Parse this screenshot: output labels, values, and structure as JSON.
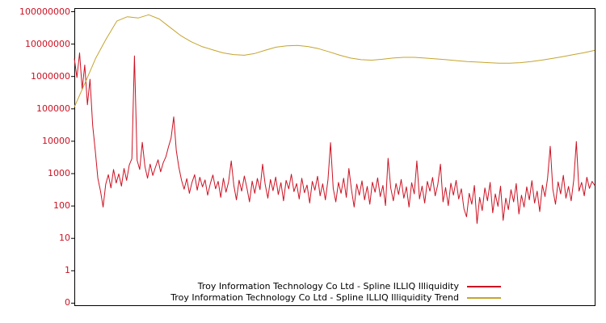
{
  "chart": {
    "background_color": "#ffffff",
    "plot_border_color": "#000000",
    "axis_label_color": "#cc1122"
  },
  "chart_data": {
    "type": "line",
    "title": "",
    "xlabel": "",
    "ylabel": "",
    "x_axis": {
      "tick_labels_visible": false
    },
    "y_axis": {
      "scale": "log",
      "label_color": "#cc1122",
      "tick_labels": [
        "100000000",
        "10000000",
        "1000000",
        "100000",
        "10000",
        "1000",
        "100",
        "10",
        "1",
        "0"
      ],
      "range": [
        1,
        100000000
      ]
    },
    "legend_position": "bottom-center-inside",
    "series": [
      {
        "name": "Troy Information Technology Co Ltd - Spline ILLIQ Illiquidity",
        "color": "#cc1122",
        "values": [
          3500000,
          900000,
          5200000,
          400000,
          2200000,
          130000,
          800000,
          30000,
          5000,
          700,
          280,
          90,
          450,
          900,
          350,
          1300,
          500,
          950,
          400,
          1400,
          600,
          1800,
          2800,
          4200000,
          2500,
          1300,
          9000,
          1600,
          700,
          1900,
          850,
          1500,
          2600,
          1100,
          2100,
          3200,
          6500,
          12000,
          55000,
          5000,
          1500,
          600,
          320,
          680,
          240,
          520,
          900,
          300,
          750,
          380,
          620,
          210,
          480,
          880,
          330,
          560,
          180,
          700,
          260,
          540,
          2400,
          420,
          150,
          610,
          280,
          820,
          350,
          130,
          570,
          240,
          690,
          310,
          1900,
          450,
          170,
          640,
          290,
          760,
          220,
          510,
          140,
          600,
          330,
          930,
          270,
          480,
          160,
          700,
          250,
          430,
          120,
          560,
          300,
          810,
          200,
          470,
          150,
          620,
          8800,
          340,
          130,
          520,
          240,
          700,
          180,
          1400,
          310,
          90,
          460,
          210,
          580,
          150,
          390,
          110,
          530,
          260,
          720,
          190,
          420,
          100,
          2900,
          350,
          140,
          480,
          220,
          640,
          170,
          380,
          90,
          510,
          230,
          2400,
          160,
          400,
          120,
          560,
          280,
          740,
          200,
          440,
          1900,
          130,
          360,
          100,
          490,
          210,
          600,
          160,
          330,
          80,
          45,
          240,
          110,
          420,
          28,
          180,
          70,
          350,
          140,
          520,
          60,
          230,
          95,
          400,
          35,
          170,
          75,
          310,
          130,
          480,
          55,
          210,
          90,
          380,
          150,
          590,
          120,
          280,
          65,
          430,
          190,
          700,
          6800,
          320,
          110,
          540,
          230,
          860,
          170,
          390,
          140,
          620,
          9500,
          280,
          520,
          200,
          750,
          340,
          560,
          420
        ]
      },
      {
        "name": "Troy Information Technology Co Ltd - Spline ILLIQ Illiquidity Trend",
        "color": "#c5a42e",
        "values": [
          110000,
          600000,
          3500000,
          14000000,
          50000000,
          68000000,
          62000000,
          78000000,
          58000000,
          32000000,
          18000000,
          11500000,
          8200000,
          6500000,
          5200000,
          4600000,
          4400000,
          5000000,
          6300000,
          7800000,
          8600000,
          8800000,
          8200000,
          7000000,
          5600000,
          4400000,
          3600000,
          3200000,
          3100000,
          3300000,
          3600000,
          3800000,
          3800000,
          3600000,
          3400000,
          3200000,
          3000000,
          2800000,
          2700000,
          2600000,
          2500000,
          2500000,
          2600000,
          2800000,
          3100000,
          3500000,
          4000000,
          4600000,
          5300000,
          6200000
        ]
      }
    ]
  }
}
